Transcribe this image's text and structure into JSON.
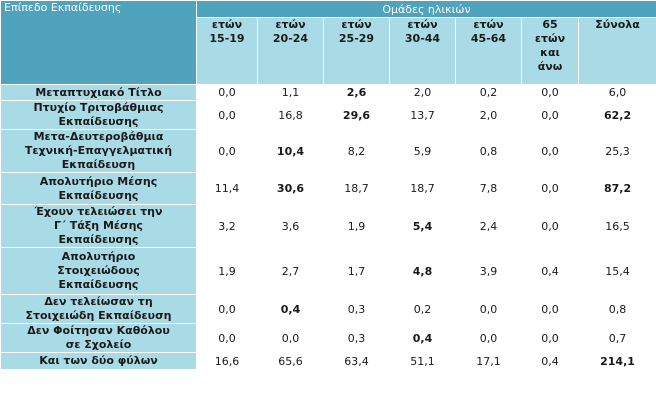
{
  "header": {
    "corner": "Επίπεδο Εκπαίδευσης",
    "group": "Ομάδες ηλικιών",
    "columns": [
      [
        "ετών",
        "15-19"
      ],
      [
        "ετών",
        "20-24"
      ],
      [
        "ετών",
        "25-29"
      ],
      [
        "ετών",
        "30-44"
      ],
      [
        "ετών",
        "45-64"
      ],
      [
        "65",
        "ετών",
        "και",
        "άνω"
      ],
      [
        "Σύνολα"
      ]
    ]
  },
  "rows": [
    {
      "label": [
        "Μεταπτυχιακό Τίτλο"
      ],
      "values": [
        "0,0",
        "1,1",
        "2,6",
        "2,0",
        "0,2",
        "0,0",
        "6,0"
      ],
      "bold": [
        2
      ]
    },
    {
      "label": [
        "Πτυχίο Τριτοβάθμιας",
        "Εκπαίδευσης"
      ],
      "values": [
        "0,0",
        "16,8",
        "29,6",
        "13,7",
        "2,0",
        "0,0",
        "62,2"
      ],
      "bold": [
        2,
        6
      ]
    },
    {
      "label": [
        "Μετα-Δευτεροβάθμια",
        "Τεχνική-Επαγγελματική",
        "Εκπαίδευση"
      ],
      "values": [
        "0,0",
        "10,4",
        "8,2",
        "5,9",
        "0,8",
        "0,0",
        "25,3"
      ],
      "bold": [
        1
      ]
    },
    {
      "label": [
        "Απολυτήριο Μέσης",
        "Εκπαίδευσης"
      ],
      "values": [
        "11,4",
        "30,6",
        "18,7",
        "18,7",
        "7,8",
        "0,0",
        "87,2"
      ],
      "bold": [
        1,
        6
      ]
    },
    {
      "label": [
        "Έχουν τελειώσει την",
        "Γ΄ Τάξη Μέσης",
        "Εκπαίδευσης"
      ],
      "values": [
        "3,2",
        "3,6",
        "1,9",
        "5,4",
        "2,4",
        "0,0",
        "16,5"
      ],
      "bold": [
        3
      ]
    },
    {
      "label": [
        "Απολυτήριο",
        "Στοιχειώδους",
        "Εκπαίδευσης"
      ],
      "values": [
        "1,9",
        "2,7",
        "1,7",
        "4,8",
        "3,9",
        "0,4",
        "15,4"
      ],
      "bold": [
        3
      ]
    },
    {
      "label": [
        "Δεν τελείωσαν τη",
        "Στοιχειώδη Εκπαίδευση"
      ],
      "values": [
        "0,0",
        "0,4",
        "0,3",
        "0,2",
        "0,0",
        "0,0",
        "0,8"
      ],
      "bold": [
        1
      ]
    },
    {
      "label": [
        "Δεν Φοίτησαν Καθόλου",
        "σε Σχολείο"
      ],
      "values": [
        "0,0",
        "0,0",
        "0,3",
        "0,4",
        "0,0",
        "0,0",
        "0,7"
      ],
      "bold": [
        3
      ]
    },
    {
      "label": [
        "Και των δύο φύλων"
      ],
      "values": [
        "16,6",
        "65,6",
        "63,4",
        "51,1",
        "17,1",
        "0,4",
        "214,1"
      ],
      "bold": [
        6
      ]
    }
  ],
  "colors": {
    "header_dark": "#4fa3bd",
    "header_light": "#a9dbe6",
    "body": "#ffffff"
  }
}
